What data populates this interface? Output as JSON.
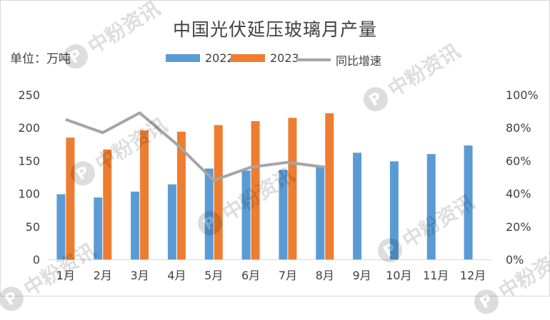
{
  "chart_data": {
    "type": "bar",
    "title": "中国光伏延压玻璃月产量",
    "unit_label": "单位：万吨",
    "categories": [
      "1月",
      "2月",
      "3月",
      "4月",
      "5月",
      "6月",
      "7月",
      "8月",
      "9月",
      "10月",
      "11月",
      "12月"
    ],
    "series": [
      {
        "name": "2022",
        "kind": "bar",
        "axis": "left",
        "color": "#5b9bd5",
        "values": [
          99,
          94,
          103,
          114,
          138,
          135,
          136,
          142,
          162,
          149,
          160,
          173
        ]
      },
      {
        "name": "2023",
        "kind": "bar",
        "axis": "left",
        "color": "#ed7d31",
        "values": [
          185,
          167,
          196,
          194,
          204,
          210,
          215,
          222,
          null,
          null,
          null,
          null
        ]
      },
      {
        "name": "同比增速",
        "kind": "line",
        "axis": "right",
        "color": "#a5a5a5",
        "values": [
          0.85,
          0.77,
          0.89,
          0.7,
          0.48,
          0.56,
          0.59,
          0.56,
          null,
          null,
          null,
          null
        ]
      }
    ],
    "y_left": {
      "min": 0,
      "max": 250,
      "ticks": [
        0,
        50,
        100,
        150,
        200,
        250
      ]
    },
    "y_right": {
      "min": 0,
      "max": 1,
      "ticks": [
        "0%",
        "20%",
        "40%",
        "60%",
        "80%",
        "100%"
      ]
    },
    "legend_position": "top",
    "grid": false
  },
  "watermark": {
    "text": "中粉资讯",
    "logo_letter": "P"
  }
}
